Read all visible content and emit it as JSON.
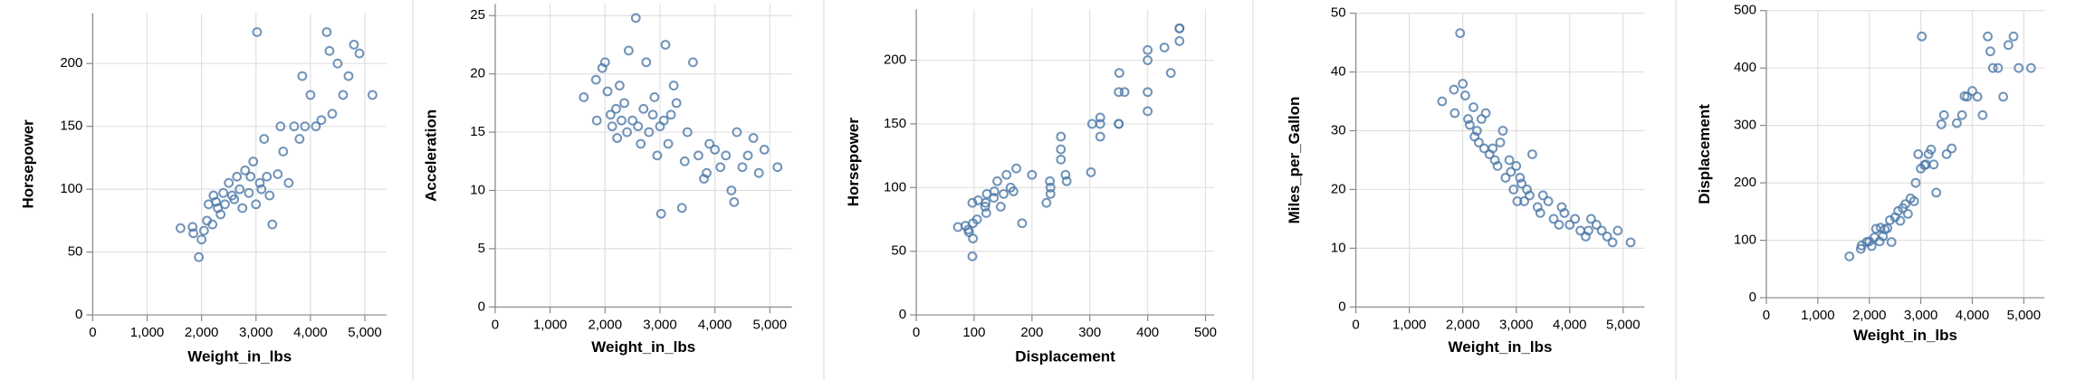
{
  "chart_data": [
    {
      "type": "scatter",
      "x_label": "Weight_in_lbs",
      "y_label": "Horsepower",
      "color": "#4c78a8",
      "grid": true,
      "xlim": [
        0,
        5400
      ],
      "ylim": [
        0,
        240
      ],
      "xticks": [
        0,
        {
          "value": 1000,
          "label": "1,000"
        },
        {
          "value": 2000,
          "label": "2,000"
        },
        {
          "value": 3000,
          "label": "3,000"
        },
        {
          "value": 4000,
          "label": "4,000"
        },
        {
          "value": 5000,
          "label": "5,000"
        }
      ],
      "yticks": [
        0,
        50,
        100,
        150,
        200
      ],
      "x": [
        1613,
        1835,
        1850,
        1950,
        2000,
        2045,
        2100,
        2130,
        2200,
        2220,
        2265,
        2300,
        2350,
        2400,
        2430,
        2500,
        2560,
        2600,
        2650,
        2700,
        2750,
        2800,
        2870,
        2900,
        2950,
        3000,
        3070,
        3100,
        3150,
        3200,
        3250,
        3300,
        3400,
        3450,
        3500,
        3600,
        3700,
        3800,
        3850,
        3900,
        4000,
        4100,
        4200,
        4300,
        4350,
        4400,
        4500,
        4600,
        4700,
        4800,
        4900,
        5140,
        3020
      ],
      "y": [
        69,
        70,
        65,
        46,
        60,
        67,
        75,
        88,
        72,
        95,
        90,
        85,
        80,
        97,
        88,
        105,
        95,
        92,
        110,
        100,
        85,
        115,
        97,
        110,
        122,
        88,
        105,
        100,
        140,
        110,
        95,
        72,
        112,
        150,
        130,
        105,
        150,
        140,
        190,
        150,
        175,
        150,
        155,
        225,
        210,
        160,
        200,
        175,
        190,
        215,
        208,
        175,
        225
      ]
    },
    {
      "type": "scatter",
      "x_label": "Weight_in_lbs",
      "y_label": "Acceleration",
      "color": "#4c78a8",
      "grid": true,
      "xlim": [
        0,
        5400
      ],
      "ylim": [
        0,
        26
      ],
      "xticks": [
        0,
        {
          "value": 1000,
          "label": "1,000"
        },
        {
          "value": 2000,
          "label": "2,000"
        },
        {
          "value": 3000,
          "label": "3,000"
        },
        {
          "value": 4000,
          "label": "4,000"
        },
        {
          "value": 5000,
          "label": "5,000"
        }
      ],
      "yticks": [
        0,
        5,
        10,
        15,
        20,
        25
      ],
      "x": [
        1613,
        1835,
        1850,
        1950,
        2000,
        2045,
        2100,
        2130,
        2200,
        2220,
        2265,
        2300,
        2350,
        2400,
        2430,
        2500,
        2560,
        2600,
        2650,
        2700,
        2750,
        2800,
        2870,
        2900,
        2950,
        3000,
        3070,
        3100,
        3150,
        3200,
        3250,
        3300,
        3400,
        3450,
        3500,
        3600,
        3700,
        3800,
        3850,
        3900,
        4000,
        4100,
        4200,
        4300,
        4350,
        4400,
        4500,
        4600,
        4700,
        4800,
        4900,
        5140,
        3020
      ],
      "y": [
        18,
        19.5,
        16,
        20.5,
        21,
        18.5,
        16.5,
        15.5,
        17,
        14.5,
        19,
        16,
        17.5,
        15,
        22,
        16,
        24.8,
        15.5,
        14,
        17,
        21,
        15,
        16.5,
        18,
        13,
        15.5,
        16,
        22.5,
        14,
        16.5,
        19,
        17.5,
        8.5,
        12.5,
        15,
        21,
        13,
        11,
        11.5,
        14,
        13.5,
        12,
        13,
        10,
        9,
        15,
        12,
        13,
        14.5,
        11.5,
        13.5,
        12,
        8
      ]
    },
    {
      "type": "scatter",
      "x_label": "Displacement",
      "y_label": "Horsepower",
      "color": "#4c78a8",
      "grid": true,
      "xlim": [
        0,
        515
      ],
      "ylim": [
        0,
        240
      ],
      "xticks": [
        0,
        100,
        200,
        300,
        400,
        500
      ],
      "yticks": [
        0,
        50,
        100,
        150,
        200
      ],
      "x": [
        72,
        85,
        91,
        97,
        98,
        90,
        105,
        120,
        98,
        122,
        107,
        119,
        121,
        135,
        97,
        140,
        151,
        134,
        156,
        163,
        146,
        173,
        168,
        200,
        250,
        225,
        231,
        232,
        250,
        258,
        232,
        183,
        302,
        318,
        250,
        260,
        304,
        318,
        351,
        350,
        360,
        350,
        318,
        455,
        429,
        400,
        400,
        350,
        440,
        455,
        400,
        400,
        455
      ],
      "y": [
        69,
        70,
        65,
        46,
        60,
        67,
        75,
        88,
        72,
        95,
        90,
        85,
        80,
        97,
        88,
        105,
        95,
        92,
        110,
        100,
        85,
        115,
        97,
        110,
        122,
        88,
        105,
        100,
        140,
        110,
        95,
        72,
        112,
        150,
        130,
        105,
        150,
        140,
        190,
        150,
        175,
        150,
        155,
        225,
        210,
        160,
        200,
        175,
        190,
        215,
        208,
        175,
        225
      ]
    },
    {
      "type": "scatter",
      "x_label": "Weight_in_lbs",
      "y_label": "Miles_per_Gallon",
      "color": "#4c78a8",
      "grid": true,
      "xlim": [
        0,
        5400
      ],
      "ylim": [
        0,
        50
      ],
      "xticks": [
        0,
        {
          "value": 1000,
          "label": "1,000"
        },
        {
          "value": 2000,
          "label": "2,000"
        },
        {
          "value": 3000,
          "label": "3,000"
        },
        {
          "value": 4000,
          "label": "4,000"
        },
        {
          "value": 5000,
          "label": "5,000"
        }
      ],
      "yticks": [
        0,
        10,
        20,
        30,
        40,
        50
      ],
      "x": [
        1613,
        1835,
        1850,
        1950,
        2000,
        2045,
        2100,
        2130,
        2200,
        2220,
        2265,
        2300,
        2350,
        2400,
        2430,
        2500,
        2560,
        2600,
        2650,
        2700,
        2750,
        2800,
        2870,
        2900,
        2950,
        3000,
        3070,
        3100,
        3150,
        3200,
        3250,
        3300,
        3400,
        3450,
        3500,
        3600,
        3700,
        3800,
        3850,
        3900,
        4000,
        4100,
        4200,
        4300,
        4350,
        4400,
        4500,
        4600,
        4700,
        4800,
        4900,
        5140,
        3020
      ],
      "y": [
        35,
        37,
        33,
        46.6,
        38,
        36,
        32,
        31,
        34,
        29,
        30,
        28,
        32,
        27,
        33,
        26,
        27,
        25,
        24,
        28,
        30,
        22,
        25,
        23,
        20,
        24,
        22,
        21,
        18,
        20,
        19,
        26,
        17,
        16,
        19,
        18,
        15,
        14,
        17,
        16,
        14,
        15,
        13,
        12,
        13,
        15,
        14,
        13,
        12,
        11,
        13,
        11,
        18
      ]
    },
    {
      "type": "scatter",
      "x_label": "Weight_in_lbs",
      "y_label": "Displacement",
      "color": "#4c78a8",
      "grid": true,
      "xlim": [
        0,
        5400
      ],
      "ylim": [
        0,
        500
      ],
      "xticks": [
        0,
        {
          "value": 1000,
          "label": "1,000"
        },
        {
          "value": 2000,
          "label": "2,000"
        },
        {
          "value": 3000,
          "label": "3,000"
        },
        {
          "value": 4000,
          "label": "4,000"
        },
        {
          "value": 5000,
          "label": "5,000"
        }
      ],
      "yticks": [
        0,
        100,
        200,
        300,
        400,
        500
      ],
      "x": [
        1613,
        1835,
        1850,
        1950,
        2000,
        2045,
        2100,
        2130,
        2200,
        2220,
        2265,
        2300,
        2350,
        2400,
        2430,
        2500,
        2560,
        2600,
        2650,
        2700,
        2750,
        2800,
        2870,
        2900,
        2950,
        3000,
        3070,
        3100,
        3150,
        3200,
        3250,
        3300,
        3400,
        3450,
        3500,
        3600,
        3700,
        3800,
        3850,
        3900,
        4000,
        4100,
        4200,
        4300,
        4350,
        4400,
        4500,
        4600,
        4700,
        4800,
        4900,
        5140,
        3020
      ],
      "y": [
        72,
        85,
        91,
        97,
        98,
        90,
        105,
        120,
        98,
        122,
        107,
        119,
        121,
        135,
        97,
        140,
        151,
        134,
        156,
        163,
        146,
        173,
        168,
        200,
        250,
        225,
        231,
        232,
        250,
        258,
        232,
        183,
        302,
        318,
        250,
        260,
        304,
        318,
        351,
        350,
        360,
        350,
        318,
        455,
        429,
        400,
        400,
        350,
        440,
        455,
        400,
        400,
        455
      ]
    }
  ]
}
